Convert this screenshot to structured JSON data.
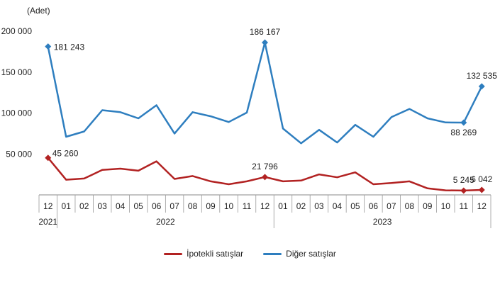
{
  "chart_data": {
    "type": "line",
    "unit_label": "(Adet)",
    "ylim": [
      0,
      200000
    ],
    "yticks": [
      "200 000",
      "150 000",
      "100 000",
      "50 000",
      ""
    ],
    "ytick_values": [
      200000,
      150000,
      100000,
      50000,
      0
    ],
    "months": [
      "12",
      "01",
      "02",
      "03",
      "04",
      "05",
      "06",
      "07",
      "08",
      "09",
      "10",
      "11",
      "12",
      "01",
      "02",
      "03",
      "04",
      "05",
      "06",
      "07",
      "08",
      "09",
      "10",
      "11",
      "12"
    ],
    "years": [
      {
        "label": "2021",
        "start": 0,
        "end": 0
      },
      {
        "label": "2022",
        "start": 1,
        "end": 12
      },
      {
        "label": "2023",
        "start": 13,
        "end": 24
      }
    ],
    "series": [
      {
        "name": "İpotekli satışlar",
        "color": "#b22222",
        "values": [
          45260,
          18500,
          20000,
          30500,
          32000,
          29500,
          41000,
          19500,
          23000,
          16500,
          13000,
          16500,
          21796,
          16500,
          17500,
          25000,
          21500,
          27500,
          13000,
          14500,
          16500,
          8000,
          5500,
          5245,
          6042
        ],
        "markers": [
          0,
          12,
          23,
          24
        ],
        "labels": [
          {
            "index": 0,
            "text": "45 260"
          },
          {
            "index": 12,
            "text": "21 796"
          },
          {
            "index": 23,
            "text": "5 245"
          },
          {
            "index": 24,
            "text": "6 042"
          }
        ]
      },
      {
        "name": "Diğer satışlar",
        "color": "#2e7ebf",
        "values": [
          181243,
          71000,
          77500,
          103500,
          101000,
          93500,
          109500,
          75000,
          101000,
          96000,
          89000,
          100500,
          186167,
          81000,
          63000,
          79500,
          64000,
          85500,
          71000,
          95000,
          105000,
          93500,
          88500,
          88269,
          132535
        ],
        "markers": [
          0,
          12,
          23,
          24
        ],
        "labels": [
          {
            "index": 0,
            "text": "181 243"
          },
          {
            "index": 12,
            "text": "186 167"
          },
          {
            "index": 23,
            "text": "88 269"
          },
          {
            "index": 24,
            "text": "132 535"
          }
        ]
      }
    ],
    "legend_position": "bottom-center"
  }
}
